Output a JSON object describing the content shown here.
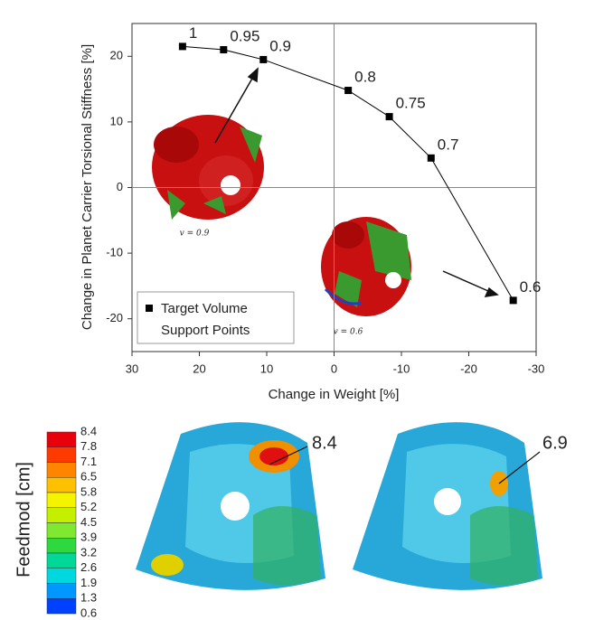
{
  "chart_data": [
    {
      "type": "scatter",
      "x_label": "Change in Weight [%]",
      "y_label": "Change in Planet Carrier Torsional Stiffness [%]",
      "xlim": [
        30,
        -30
      ],
      "xticks": [
        30,
        20,
        10,
        0,
        -10,
        -20,
        -30
      ],
      "ylim": [
        -25,
        25
      ],
      "yticks": [
        -20,
        -10,
        0,
        10,
        20
      ],
      "x": [
        22.5,
        16.4,
        10.5,
        -2.1,
        -8.2,
        -14.4,
        -26.6
      ],
      "series": [
        {
          "name": "Target Volume Support Points",
          "color": "#000000",
          "values": [
            21.5,
            21,
            19.5,
            14.8,
            10.8,
            4.5,
            -17.2
          ],
          "point_labels": [
            "1",
            "0.95",
            "0.9",
            "0.8",
            "0.75",
            "0.7",
            "0.6"
          ]
        }
      ],
      "annotations": [
        "v = 0.9",
        "v = 0.6"
      ],
      "zero_lines": true
    },
    {
      "type": "colorbar",
      "title": "Feedmod [cm]",
      "ticks": [
        8.4,
        7.8,
        7.1,
        6.5,
        5.8,
        5.2,
        4.5,
        3.9,
        3.2,
        2.6,
        1.9,
        1.3,
        0.6
      ],
      "colors": [
        "#e8000b",
        "#ff3a00",
        "#ff8400",
        "#ffc000",
        "#f4f400",
        "#c4f000",
        "#7fe830",
        "#30d840",
        "#00d898",
        "#00d8e0",
        "#0098ff",
        "#0040ff"
      ],
      "annotations": [
        "8.4",
        "6.9"
      ]
    }
  ]
}
